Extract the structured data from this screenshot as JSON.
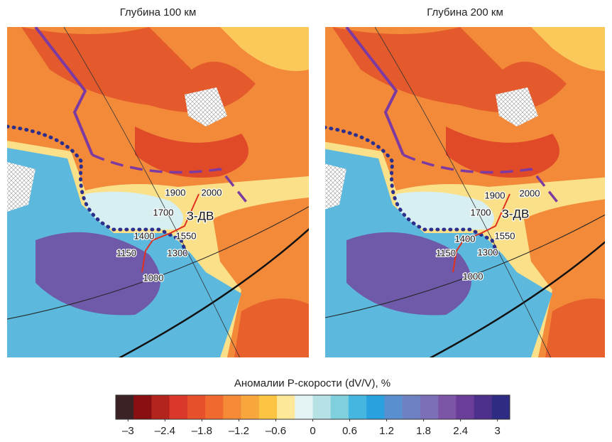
{
  "panels": [
    {
      "title": "Глубина 100 км",
      "labels": [
        "1900",
        "2000",
        "1700",
        "З-ДВ",
        "1400",
        "1550",
        "1150",
        "1300",
        "1000"
      ]
    },
    {
      "title": "Глубина 200 км",
      "labels": [
        "1900",
        "2000",
        "1700",
        "З-ДВ",
        "1400",
        "1550",
        "1150",
        "1300",
        "1000"
      ]
    }
  ],
  "colorbar": {
    "title": "Аномалии P-скорости (dV/V), %",
    "range": [
      -3.2,
      3.2
    ],
    "colors": [
      "#3b2224",
      "#8a0f12",
      "#b3241d",
      "#d9382a",
      "#e8502c",
      "#f06a2f",
      "#f48a35",
      "#f8a73c",
      "#fbc443",
      "#fde89a",
      "#e4f3f4",
      "#b6e2e6",
      "#7fcfdc",
      "#45b6e0",
      "#2aa1df",
      "#5a8fcf",
      "#6d80c2",
      "#7c6fb8",
      "#7d55a6",
      "#6a3d98",
      "#4d2f8c",
      "#2e2b83"
    ],
    "ticks": [
      {
        "value": -3,
        "label": "–3"
      },
      {
        "value": -2.4,
        "label": "–2.4"
      },
      {
        "value": -1.8,
        "label": "–1.8"
      },
      {
        "value": -1.2,
        "label": "–1.2"
      },
      {
        "value": -0.6,
        "label": "–0.6"
      },
      0,
      0.6,
      1.2,
      1.8,
      2.4,
      3
    ]
  }
}
